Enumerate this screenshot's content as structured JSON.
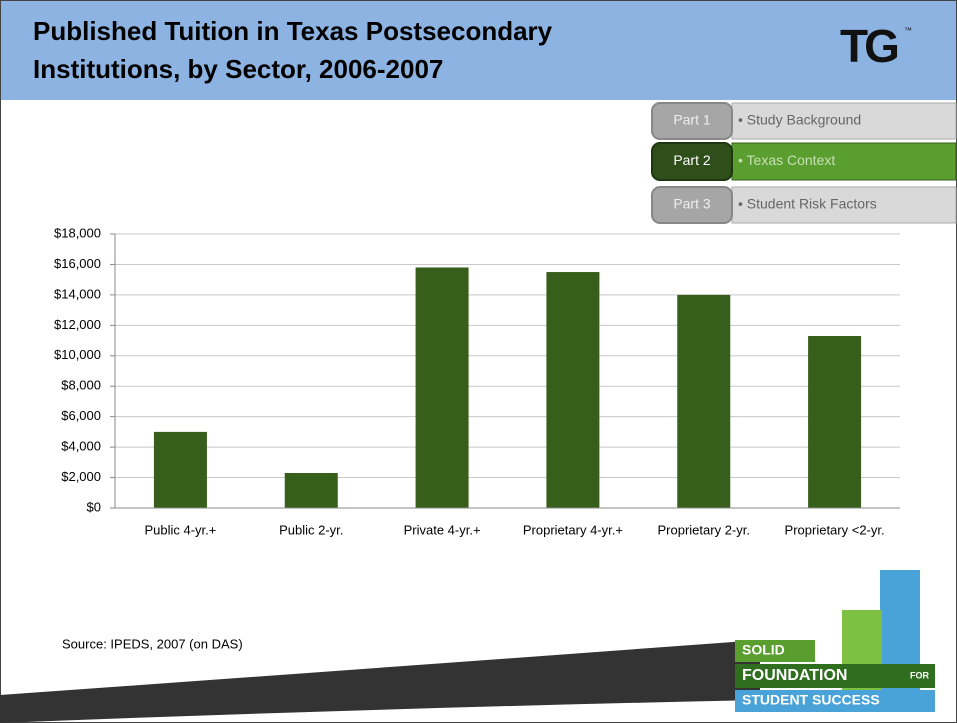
{
  "chart_data": {
    "type": "bar",
    "title": [
      "Published Tuition in Texas Postsecondary",
      "Institutions, by Sector, 2006-2007"
    ],
    "categories": [
      "Public 4-yr.+",
      "Public 2-yr.",
      "Private 4-yr.+",
      "Proprietary 4-yr.+",
      "Proprietary 2-yr.",
      "Proprietary <2-yr."
    ],
    "values": [
      5000,
      2300,
      15800,
      15500,
      14000,
      11300
    ],
    "color": "#375f1b",
    "ylim": [
      0,
      18000
    ],
    "yticks": [
      {
        "value": 0,
        "label": "$0"
      },
      {
        "value": 2000,
        "label": "$2,000"
      },
      {
        "value": 4000,
        "label": "$4,000"
      },
      {
        "value": 6000,
        "label": "$6,000"
      },
      {
        "value": 8000,
        "label": "$8,000"
      },
      {
        "value": 10000,
        "label": "$10,000"
      },
      {
        "value": 12000,
        "label": "$12,000"
      },
      {
        "value": 14000,
        "label": "$14,000"
      },
      {
        "value": 16000,
        "label": "$16,000"
      },
      {
        "value": 18000,
        "label": "$18,000"
      }
    ],
    "grid": true
  },
  "source": "Source: IPEDS, 2007 (on DAS)",
  "nav": [
    {
      "part": "Part 1",
      "topic": "• Study Background"
    },
    {
      "part": "Part 2",
      "topic": "• Texas Context"
    },
    {
      "part": "Part 3",
      "topic": "• Student Risk Factors"
    }
  ],
  "logo": {
    "name": "TG",
    "mark": "™"
  },
  "footer_logo": {
    "line1": "SOLID",
    "line2": "FOUNDATION",
    "line2b": "FOR",
    "line3": "STUDENT SUCCESS"
  }
}
